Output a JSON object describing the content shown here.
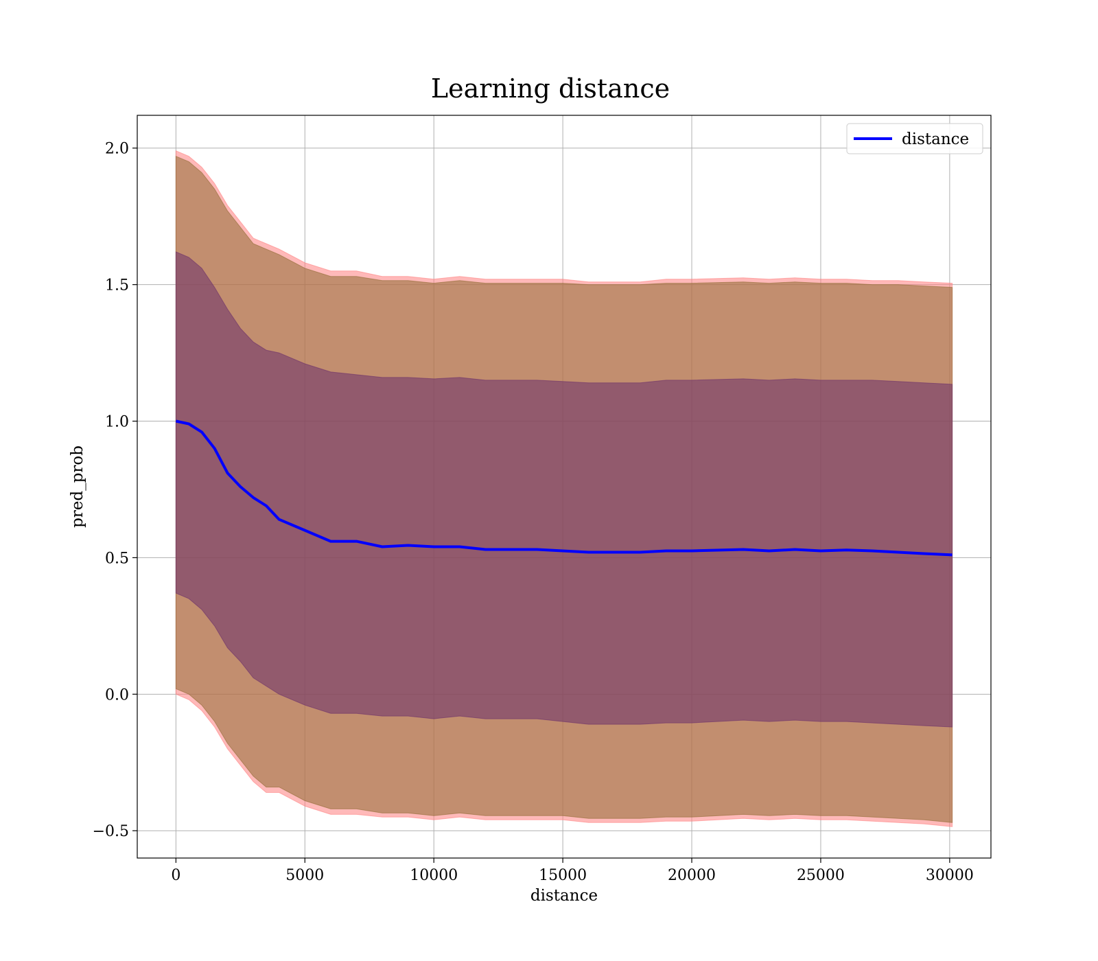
{
  "chart_data": {
    "type": "line",
    "title": "Learning distance",
    "xlabel": "distance",
    "ylabel": "pred_prob",
    "xlim": [
      -1500,
      31600
    ],
    "ylim": [
      -0.6,
      2.12
    ],
    "xticks": [
      0,
      5000,
      10000,
      15000,
      20000,
      25000,
      30000
    ],
    "xtick_labels": [
      "0",
      "5000",
      "10000",
      "15000",
      "20000",
      "25000",
      "30000"
    ],
    "yticks": [
      2.0,
      1.5,
      1.0,
      0.5,
      0.0,
      -0.5
    ],
    "ytick_labels": [
      "2.0",
      "1.5",
      "1.0",
      "0.5",
      "0.0",
      "−0.5"
    ],
    "grid": true,
    "legend_position": "top-right",
    "x": [
      0,
      500,
      1000,
      1500,
      2000,
      2500,
      3000,
      3500,
      4000,
      5000,
      6000,
      7000,
      8000,
      9000,
      10000,
      11000,
      12000,
      13000,
      14000,
      15000,
      16000,
      17000,
      18000,
      19000,
      20000,
      22000,
      23000,
      24000,
      25000,
      26000,
      27000,
      28000,
      29000,
      30100
    ],
    "series": [
      {
        "name": "distance",
        "color": "#0000ff",
        "values": [
          1.0,
          0.99,
          0.96,
          0.9,
          0.81,
          0.76,
          0.72,
          0.69,
          0.64,
          0.6,
          0.56,
          0.56,
          0.54,
          0.545,
          0.54,
          0.54,
          0.53,
          0.53,
          0.53,
          0.525,
          0.52,
          0.52,
          0.52,
          0.525,
          0.525,
          0.53,
          0.525,
          0.53,
          0.525,
          0.528,
          0.525,
          0.52,
          0.515,
          0.51
        ]
      }
    ],
    "bands": [
      {
        "color": "#ff8080",
        "upper": [
          1.99,
          1.97,
          1.93,
          1.87,
          1.79,
          1.73,
          1.67,
          1.65,
          1.63,
          1.58,
          1.55,
          1.55,
          1.53,
          1.53,
          1.52,
          1.53,
          1.52,
          1.52,
          1.52,
          1.52,
          1.51,
          1.51,
          1.51,
          1.52,
          1.52,
          1.525,
          1.52,
          1.525,
          1.52,
          1.52,
          1.515,
          1.515,
          1.51,
          1.505
        ],
        "lower": [
          0.0,
          -0.02,
          -0.06,
          -0.12,
          -0.2,
          -0.26,
          -0.32,
          -0.36,
          -0.36,
          -0.41,
          -0.44,
          -0.44,
          -0.45,
          -0.45,
          -0.46,
          -0.45,
          -0.46,
          -0.46,
          -0.46,
          -0.46,
          -0.47,
          -0.47,
          -0.47,
          -0.465,
          -0.465,
          -0.455,
          -0.46,
          -0.455,
          -0.46,
          -0.46,
          -0.465,
          -0.47,
          -0.475,
          -0.485
        ]
      },
      {
        "color": "#8f6b33",
        "upper": [
          1.97,
          1.95,
          1.91,
          1.85,
          1.77,
          1.71,
          1.65,
          1.63,
          1.61,
          1.56,
          1.53,
          1.53,
          1.515,
          1.515,
          1.505,
          1.515,
          1.505,
          1.505,
          1.505,
          1.505,
          1.5,
          1.5,
          1.5,
          1.505,
          1.505,
          1.51,
          1.505,
          1.51,
          1.505,
          1.505,
          1.5,
          1.5,
          1.495,
          1.49
        ],
        "lower": [
          0.02,
          0.0,
          -0.04,
          -0.1,
          -0.18,
          -0.24,
          -0.3,
          -0.34,
          -0.34,
          -0.39,
          -0.42,
          -0.42,
          -0.435,
          -0.435,
          -0.445,
          -0.435,
          -0.445,
          -0.445,
          -0.445,
          -0.445,
          -0.455,
          -0.455,
          -0.455,
          -0.45,
          -0.45,
          -0.44,
          -0.445,
          -0.44,
          -0.445,
          -0.445,
          -0.45,
          -0.455,
          -0.46,
          -0.47
        ]
      },
      {
        "color": "#6b2f6b",
        "upper": [
          1.62,
          1.6,
          1.56,
          1.49,
          1.41,
          1.34,
          1.29,
          1.26,
          1.25,
          1.21,
          1.18,
          1.17,
          1.16,
          1.16,
          1.155,
          1.16,
          1.15,
          1.15,
          1.15,
          1.145,
          1.14,
          1.14,
          1.14,
          1.15,
          1.15,
          1.155,
          1.15,
          1.155,
          1.15,
          1.15,
          1.15,
          1.145,
          1.14,
          1.135
        ],
        "lower": [
          0.37,
          0.35,
          0.31,
          0.25,
          0.17,
          0.12,
          0.06,
          0.03,
          0.0,
          -0.04,
          -0.07,
          -0.07,
          -0.08,
          -0.08,
          -0.09,
          -0.08,
          -0.09,
          -0.09,
          -0.09,
          -0.1,
          -0.11,
          -0.11,
          -0.11,
          -0.105,
          -0.105,
          -0.095,
          -0.1,
          -0.095,
          -0.1,
          -0.1,
          -0.105,
          -0.11,
          -0.115,
          -0.12
        ]
      }
    ]
  }
}
